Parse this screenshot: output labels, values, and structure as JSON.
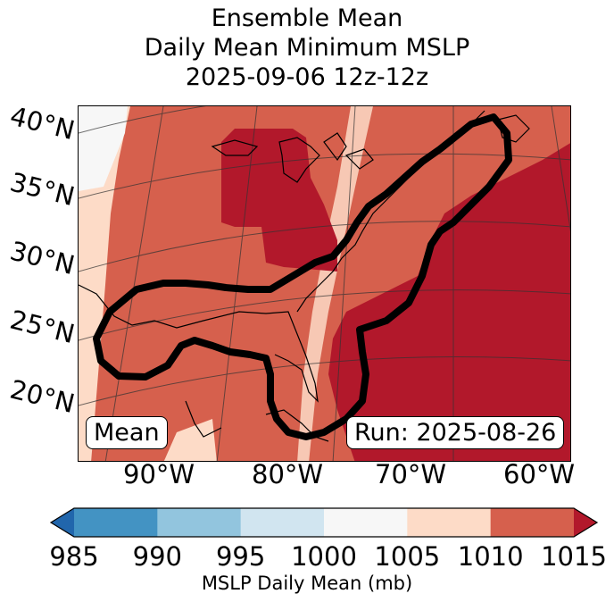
{
  "title": {
    "line1": "Ensemble Mean",
    "line2": "Daily Mean Minimum MSLP",
    "line3": "2025-09-06 12z-12z"
  },
  "map": {
    "lat_labels": [
      "40°N",
      "35°N",
      "30°N",
      "25°N",
      "20°N"
    ],
    "lon_labels": [
      "90°W",
      "80°W",
      "70°W",
      "60°W"
    ],
    "mean_label": "Mean",
    "run_label": "Run: 2025-08-26"
  },
  "colorbar": {
    "ticks": [
      "985",
      "990",
      "995",
      "1000",
      "1005",
      "1010",
      "1015"
    ],
    "label": "MSLP Daily Mean (mb)",
    "colors": [
      "#2166ac",
      "#4393c3",
      "#92c5de",
      "#d1e5f0",
      "#f7f7f7",
      "#fddbc7",
      "#d6604d",
      "#b2182b"
    ]
  }
}
